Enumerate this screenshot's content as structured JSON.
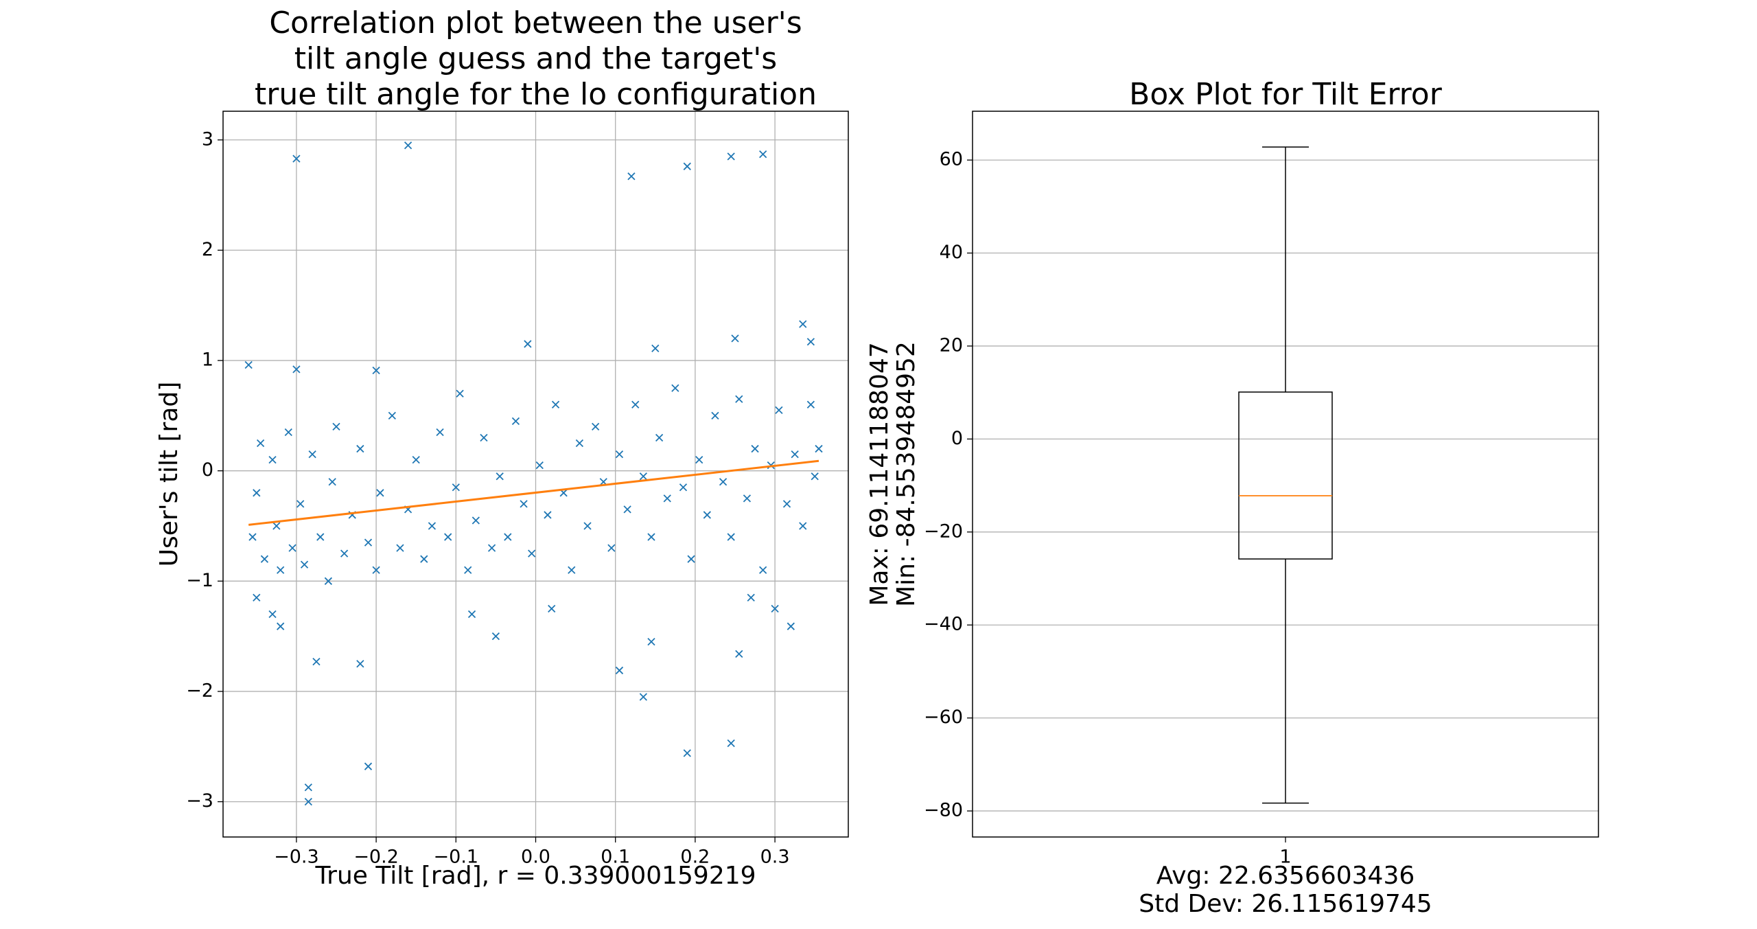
{
  "chart_data": [
    {
      "type": "scatter",
      "title": [
        "Correlation plot between the user's",
        "tilt angle guess and the target's",
        "true tilt angle for the lo configuration"
      ],
      "x_label": "True Tilt [rad], r = 0.339000159219",
      "y_label": "User's tilt [rad]",
      "xlim": [
        -0.392,
        0.392
      ],
      "ylim": [
        -3.32,
        3.26
      ],
      "xticks": [
        {
          "value": -0.3,
          "label": "−0.3"
        },
        {
          "value": -0.2,
          "label": "−0.2"
        },
        {
          "value": -0.1,
          "label": "−0.1"
        },
        {
          "value": 0,
          "label": "0.0"
        },
        0.1,
        0.2,
        0.3
      ],
      "yticks": [
        {
          "value": -3,
          "label": "−3"
        },
        {
          "value": -2,
          "label": "−2"
        },
        {
          "value": -1,
          "label": "−1"
        },
        0,
        1,
        2,
        3
      ],
      "grid": true,
      "points": {
        "color": "#1f77b4",
        "x": [
          -0.355,
          -0.35,
          -0.345,
          -0.34,
          -0.33,
          -0.325,
          -0.32,
          -0.31,
          -0.305,
          -0.295,
          -0.29,
          -0.28,
          -0.27,
          -0.26,
          -0.255,
          -0.25,
          -0.24,
          -0.23,
          -0.22,
          -0.21,
          -0.2,
          -0.195,
          -0.18,
          -0.17,
          -0.16,
          -0.15,
          -0.14,
          -0.13,
          -0.12,
          -0.11,
          -0.1,
          -0.095,
          -0.085,
          -0.075,
          -0.065,
          -0.055,
          -0.045,
          -0.035,
          -0.025,
          -0.015,
          -0.005,
          0.005,
          0.015,
          0.025,
          0.035,
          0.045,
          0.055,
          0.065,
          0.075,
          0.085,
          0.095,
          0.105,
          0.115,
          0.125,
          0.135,
          0.145,
          0.155,
          0.165,
          0.175,
          0.185,
          0.195,
          0.205,
          0.215,
          0.225,
          0.235,
          0.245,
          0.255,
          0.265,
          0.275,
          0.285,
          0.295,
          0.305,
          0.315,
          0.325,
          0.335,
          0.345,
          0.35,
          0.355,
          0.3,
          0.27,
          -0.08,
          -0.05,
          0.02,
          -0.3,
          -0.16,
          0.12,
          0.19,
          0.245,
          0.285,
          -0.285,
          -0.285,
          -0.21,
          0.19,
          0.245,
          -0.275,
          -0.22,
          0.105,
          0.135,
          0.145,
          0.255,
          0.335,
          0.345,
          0.25,
          -0.01,
          0.15,
          -0.36,
          -0.3,
          -0.2,
          -0.35,
          -0.33,
          -0.32,
          0.32
        ],
        "y": [
          -0.6,
          -0.2,
          0.25,
          -0.8,
          0.1,
          -0.5,
          -0.9,
          0.35,
          -0.7,
          -0.3,
          -0.85,
          0.15,
          -0.6,
          -1.0,
          -0.1,
          0.4,
          -0.75,
          -0.4,
          0.2,
          -0.65,
          -0.9,
          -0.2,
          0.5,
          -0.7,
          -0.35,
          0.1,
          -0.8,
          -0.5,
          0.35,
          -0.6,
          -0.15,
          0.7,
          -0.9,
          -0.45,
          0.3,
          -0.7,
          -0.05,
          -0.6,
          0.45,
          -0.3,
          -0.75,
          0.05,
          -0.4,
          0.6,
          -0.2,
          -0.9,
          0.25,
          -0.5,
          0.4,
          -0.1,
          -0.7,
          0.15,
          -0.35,
          0.6,
          -0.05,
          -0.6,
          0.3,
          -0.25,
          0.75,
          -0.15,
          -0.8,
          0.1,
          -0.4,
          0.5,
          -0.1,
          -0.6,
          0.65,
          -0.25,
          0.2,
          -0.9,
          0.05,
          0.55,
          -0.3,
          0.15,
          -0.5,
          0.6,
          -0.05,
          0.2,
          -1.25,
          -1.15,
          -1.3,
          -1.5,
          -1.25,
          2.83,
          2.95,
          2.67,
          2.76,
          2.85,
          2.87,
          -2.87,
          -3.0,
          -2.68,
          -2.56,
          -2.47,
          -1.73,
          -1.75,
          -1.81,
          -2.05,
          -1.55,
          -1.66,
          1.33,
          1.17,
          1.2,
          1.15,
          1.11,
          0.96,
          0.92,
          0.91,
          -1.15,
          -1.3,
          -1.41,
          -1.41
        ]
      },
      "fit_line": {
        "color": "#ff7f0e",
        "x": [
          -0.36,
          0.355
        ],
        "y": [
          -0.49,
          0.09
        ]
      }
    },
    {
      "type": "box",
      "title": "Box Plot for Tilt Error",
      "x_label": [
        "Avg: 22.6356603436",
        "Std Dev: 26.115619745"
      ],
      "y_label": [
        "Max: 69.1141188047",
        "Min: -84.5539484952"
      ],
      "categories": [
        "1"
      ],
      "ylim": [
        -85.6,
        70.5
      ],
      "yticks": [
        {
          "value": -80,
          "label": "−80"
        },
        {
          "value": -60,
          "label": "−60"
        },
        {
          "value": -40,
          "label": "−40"
        },
        {
          "value": -20,
          "label": "−20"
        },
        0,
        20,
        40,
        60
      ],
      "grid": true,
      "boxes": [
        {
          "whisker_low": -78.3,
          "q1": -25.8,
          "median": -12.2,
          "q3": 10.1,
          "whisker_high": 62.8
        }
      ],
      "color": "#000000",
      "median_color": "#ff7f0e"
    }
  ]
}
